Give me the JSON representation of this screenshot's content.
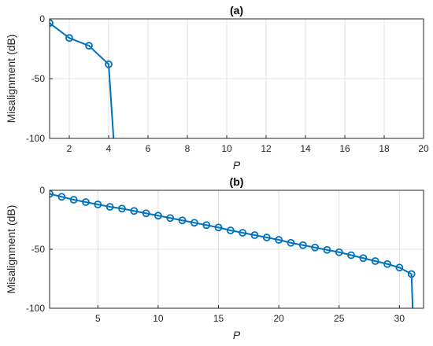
{
  "chart_data": [
    {
      "type": "line",
      "title": "(a)",
      "xlabel": "P",
      "ylabel": "Misalignment (dB)",
      "xlim": [
        1,
        20
      ],
      "ylim": [
        -100,
        0
      ],
      "xticks": [
        2,
        4,
        6,
        8,
        10,
        12,
        14,
        16,
        18,
        20
      ],
      "yticks": [
        -100,
        -50,
        0
      ],
      "grid": true,
      "color": "#0072BD",
      "series": [
        {
          "x": [
            1,
            2,
            3,
            4,
            4.25
          ],
          "y": [
            -3.5,
            -16,
            -22.5,
            -38,
            -100
          ],
          "markers": [
            true,
            true,
            true,
            true,
            false
          ]
        }
      ]
    },
    {
      "type": "line",
      "title": "(b)",
      "xlabel": "P",
      "ylabel": "Misalignment (dB)",
      "xlim": [
        1,
        32
      ],
      "ylim": [
        -100,
        0
      ],
      "xticks": [
        5,
        10,
        15,
        20,
        25,
        30
      ],
      "yticks": [
        -100,
        -50,
        0
      ],
      "grid": true,
      "color": "#0072BD",
      "series": [
        {
          "x": [
            1,
            2,
            3,
            4,
            5,
            6,
            7,
            8,
            9,
            10,
            11,
            12,
            13,
            14,
            15,
            16,
            17,
            18,
            19,
            20,
            21,
            22,
            23,
            24,
            25,
            26,
            27,
            28,
            29,
            30,
            31,
            31.1
          ],
          "y": [
            -3,
            -5.5,
            -8,
            -10,
            -12,
            -14,
            -15.5,
            -17.5,
            -19.5,
            -21.5,
            -23.5,
            -25.5,
            -27.5,
            -29.5,
            -31.5,
            -34,
            -36,
            -38,
            -40,
            -42,
            -44.5,
            -46.5,
            -48.5,
            -50.5,
            -52.5,
            -55,
            -57.5,
            -60,
            -62.5,
            -65.5,
            -71,
            -100
          ],
          "markers": [
            true,
            true,
            true,
            true,
            true,
            true,
            true,
            true,
            true,
            true,
            true,
            true,
            true,
            true,
            true,
            true,
            true,
            true,
            true,
            true,
            true,
            true,
            true,
            true,
            true,
            true,
            true,
            true,
            true,
            true,
            true,
            false
          ]
        }
      ]
    }
  ]
}
